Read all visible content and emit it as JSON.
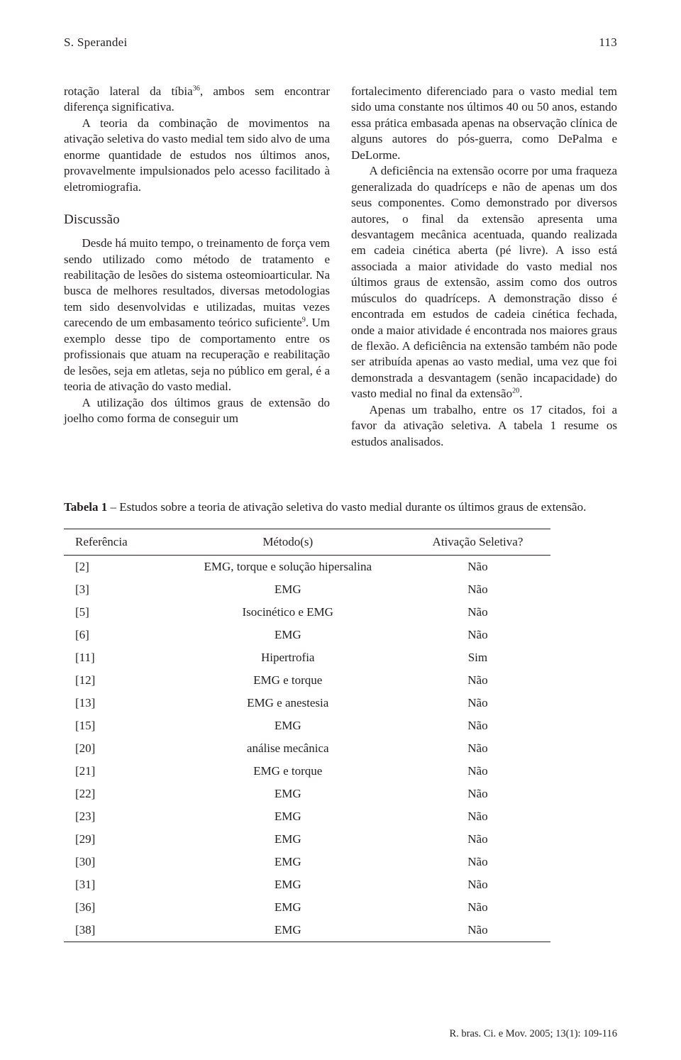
{
  "header": {
    "author": "S. Sperandei",
    "page": "113"
  },
  "left_col": {
    "p1a": "rotação lateral da tíbia",
    "p1_sup": "36",
    "p1b": ", ambos sem encontrar diferença significativa.",
    "p2": "A teoria da combinação de movimentos na ativação seletiva do vasto medial tem sido alvo de uma enorme quantidade de estudos nos últimos anos, provavelmente impulsionados pelo acesso facilitado à eletromiografia.",
    "sec": "Discussão",
    "p3a": "Desde há muito tempo, o treinamento de força vem sendo utilizado como método de tratamento e reabilitação de lesões do sistema osteomioarticular. Na busca de melhores resultados, diversas metodologias tem sido desenvolvidas e utilizadas, muitas vezes carecendo de um embasamento teórico suficiente",
    "p3_sup": "9",
    "p3b": ". Um exemplo desse tipo de comportamento entre os profissionais que atuam na recuperação e reabilitação de lesões, seja em atletas, seja no público em geral, é a teoria de ativação do vasto medial.",
    "p4": "A utilização dos últimos graus de extensão do joelho como forma de conseguir um"
  },
  "right_col": {
    "p1": "fortalecimento diferenciado para o vasto medial tem sido uma constante nos últimos 40 ou 50 anos, estando essa prática embasada apenas na observação clínica de alguns autores do pós-guerra, como DePalma e DeLorme.",
    "p2a": "A deficiência na extensão ocorre por uma fraqueza generalizada do quadríceps e não de apenas um dos seus componentes. Como demonstrado por diversos autores, o final da extensão apresenta uma desvantagem mecânica acentuada, quando realizada em cadeia cinética aberta (pé livre). A isso está associada a maior atividade do vasto medial nos últimos graus de extensão, assim como dos outros músculos do quadríceps. A demonstração disso é encontrada em estudos de cadeia cinética fechada, onde a maior atividade é encontrada nos maiores graus de flexão. A deficiência na extensão também não pode ser atribuída apenas ao vasto medial, uma vez que foi demonstrada a desvantagem (senão incapacidade) do vasto medial no final da extensão",
    "p2_sup": "20",
    "p2b": ".",
    "p3": "Apenas um trabalho, entre os 17 citados, foi a favor da ativação seletiva. A tabela 1 resume os estudos analisados."
  },
  "table": {
    "caption_label": "Tabela 1",
    "caption_text": " – Estudos sobre a teoria de ativação seletiva do vasto medial durante os últimos graus de extensão.",
    "columns": [
      "Referência",
      "Método(s)",
      "Ativação Seletiva?"
    ],
    "rows": [
      [
        "[2]",
        "EMG, torque e solução hipersalina",
        "Não"
      ],
      [
        "[3]",
        "EMG",
        "Não"
      ],
      [
        "[5]",
        "Isocinético e EMG",
        "Não"
      ],
      [
        "[6]",
        "EMG",
        "Não"
      ],
      [
        "[11]",
        "Hipertrofia",
        "Sim"
      ],
      [
        "[12]",
        "EMG e torque",
        "Não"
      ],
      [
        "[13]",
        "EMG e anestesia",
        "Não"
      ],
      [
        "[15]",
        "EMG",
        "Não"
      ],
      [
        "[20]",
        "análise mecânica",
        "Não"
      ],
      [
        "[21]",
        "EMG e torque",
        "Não"
      ],
      [
        "[22]",
        "EMG",
        "Não"
      ],
      [
        "[23]",
        "EMG",
        "Não"
      ],
      [
        "[29]",
        "EMG",
        "Não"
      ],
      [
        "[30]",
        "EMG",
        "Não"
      ],
      [
        "[31]",
        "EMG",
        "Não"
      ],
      [
        "[36]",
        "EMG",
        "Não"
      ],
      [
        "[38]",
        "EMG",
        "Não"
      ]
    ]
  },
  "footer": "R. bras. Ci. e Mov. 2005; 13(1): 109-116"
}
